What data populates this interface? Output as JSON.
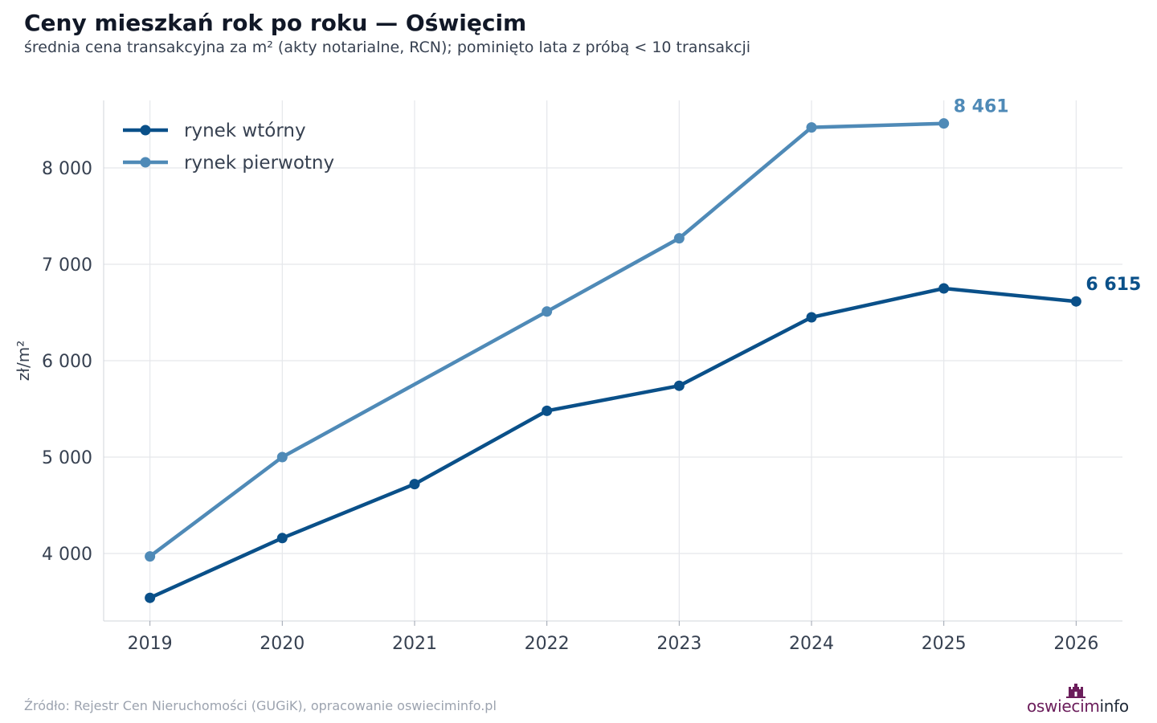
{
  "header": {
    "title": "Ceny mieszkań rok po roku — Oświęcim",
    "subtitle": "średnia cena transakcyjna za m² (akty notarialne, RCN); pominięto lata z próbą < 10 transakcji"
  },
  "footer": {
    "source": "Źródło: Rejestr Cen Nieruchomości (GUGiK), opracowanie oswieciminfo.pl"
  },
  "logo": {
    "part1": "oswiecim",
    "part2": "info",
    "icon": "castle-icon",
    "color1": "#6b1d5b",
    "color2": "#1f2937"
  },
  "chart_data": {
    "type": "line",
    "ylabel": "zł/m²",
    "x": [
      2019,
      2020,
      2021,
      2022,
      2023,
      2024,
      2025,
      2026
    ],
    "xlim": [
      2018.65,
      2026.35
    ],
    "ylim": [
      3300,
      8700
    ],
    "yticks": [
      4000,
      5000,
      6000,
      7000,
      8000
    ],
    "ytick_labels": [
      "4 000",
      "5 000",
      "6 000",
      "7 000",
      "8 000"
    ],
    "grid": true,
    "legend": "top-left",
    "series": [
      {
        "name": "rynek wtórny",
        "color": "#0a5089",
        "values": [
          3540,
          4160,
          4720,
          5480,
          5740,
          6450,
          6750,
          6615
        ],
        "end_label": "6 615"
      },
      {
        "name": "rynek pierwotny",
        "color": "#4f8ab7",
        "values": [
          3970,
          5000,
          null,
          6510,
          7270,
          8420,
          8461,
          null
        ],
        "end_label": "8 461"
      }
    ]
  }
}
